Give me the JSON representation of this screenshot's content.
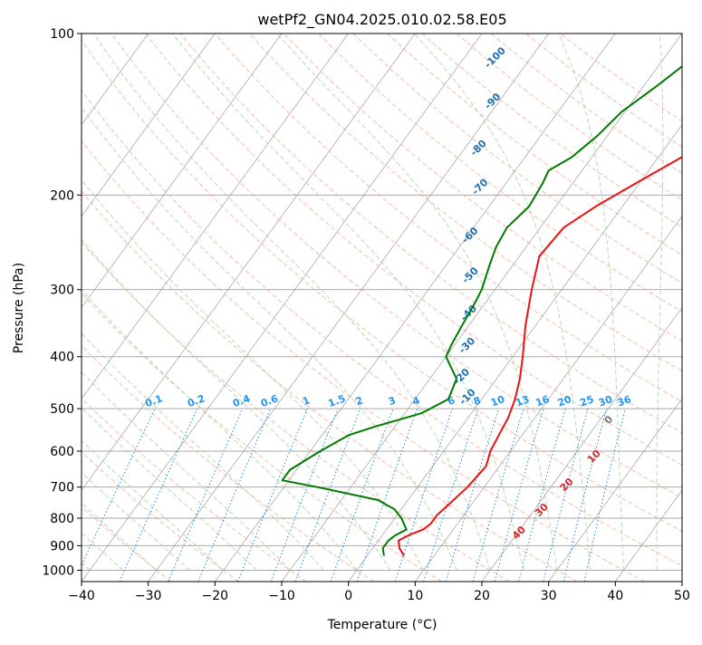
{
  "chart_data": {
    "type": "line",
    "title": "wetPf2_GN04.2025.010.02.58.E05",
    "xlabel": "Temperature (°C)",
    "ylabel": "Pressure (hPa)",
    "xlim": [
      -40,
      50
    ],
    "ylim": [
      1050,
      100
    ],
    "y_scale": "log",
    "grid": true,
    "x_ticks": [
      -40,
      -30,
      -20,
      -10,
      0,
      10,
      20,
      30,
      40,
      50
    ],
    "y_ticks": [
      100,
      200,
      300,
      400,
      500,
      600,
      700,
      800,
      900,
      1000
    ],
    "skew_t": true,
    "series": [
      {
        "color": "#ee1111",
        "points": [
          [
            940,
            5.5
          ],
          [
            910,
            4.0
          ],
          [
            880,
            3.0
          ],
          [
            860,
            4.0
          ],
          [
            840,
            5.5
          ],
          [
            820,
            6.0
          ],
          [
            790,
            6.0
          ],
          [
            760,
            6.5
          ],
          [
            700,
            7.5
          ],
          [
            640,
            8.0
          ],
          [
            600,
            7.0
          ],
          [
            560,
            6.5
          ],
          [
            520,
            6.0
          ],
          [
            480,
            5.0
          ],
          [
            440,
            3.5
          ],
          [
            400,
            1.5
          ],
          [
            350,
            -1.5
          ],
          [
            300,
            -4.5
          ],
          [
            260,
            -7.0
          ],
          [
            230,
            -6.5
          ],
          [
            210,
            -4.0
          ],
          [
            190,
            -0.5
          ],
          [
            170,
            3.5
          ],
          [
            150,
            6.0
          ],
          [
            135,
            7.5
          ],
          [
            125,
            7.5
          ],
          [
            115,
            9.0
          ],
          [
            105,
            11.5
          ],
          [
            100,
            13.0
          ]
        ]
      },
      {
        "color": "#007a00",
        "points": [
          [
            940,
            2.5
          ],
          [
            910,
            1.5
          ],
          [
            880,
            1.5
          ],
          [
            860,
            2.0
          ],
          [
            840,
            3.0
          ],
          [
            800,
            1.0
          ],
          [
            770,
            -1.0
          ],
          [
            740,
            -4.5
          ],
          [
            700,
            -15.0
          ],
          [
            680,
            -21.0
          ],
          [
            650,
            -21.0
          ],
          [
            600,
            -18.5
          ],
          [
            560,
            -16.0
          ],
          [
            540,
            -13.0
          ],
          [
            510,
            -7.5
          ],
          [
            480,
            -5.0
          ],
          [
            440,
            -6.0
          ],
          [
            400,
            -10.0
          ],
          [
            380,
            -10.5
          ],
          [
            350,
            -11.0
          ],
          [
            320,
            -11.5
          ],
          [
            300,
            -12.0
          ],
          [
            270,
            -13.5
          ],
          [
            250,
            -14.5
          ],
          [
            230,
            -15.0
          ],
          [
            210,
            -14.0
          ],
          [
            190,
            -14.5
          ],
          [
            180,
            -15.0
          ],
          [
            170,
            -13.0
          ],
          [
            155,
            -11.5
          ],
          [
            140,
            -10.5
          ],
          [
            125,
            -8.0
          ],
          [
            110,
            -5.5
          ],
          [
            100,
            -4.5
          ]
        ]
      }
    ],
    "dry_adiabat_labels": [
      "-100",
      "-90",
      "-80",
      "-70",
      "-60",
      "-50",
      "-40",
      "-30",
      "-20",
      "-10"
    ],
    "moist_adiabat_labels": [
      "0",
      "10",
      "20",
      "30",
      "40"
    ],
    "mixing_ratio_labels": [
      "0.1",
      "0.2",
      "0.4",
      "0.6",
      "1",
      "1.5",
      "2",
      "3",
      "4",
      "6",
      "8",
      "10",
      "13",
      "16",
      "20",
      "25",
      "30",
      "36"
    ],
    "colors": {
      "temperature": "#ee1111",
      "dewpoint": "#007a00",
      "isotherm": "#888888",
      "isobar": "#aaaaaa",
      "dry_adiabat": "#f4a58a",
      "moist_adiabat": "#a8d5a8",
      "mixing_ratio": "#1e88e5",
      "dry_label": "#1f6fb2",
      "moist_label": "#d62728",
      "mixing_label": "#2196f3",
      "zero_label": "#777777"
    }
  }
}
